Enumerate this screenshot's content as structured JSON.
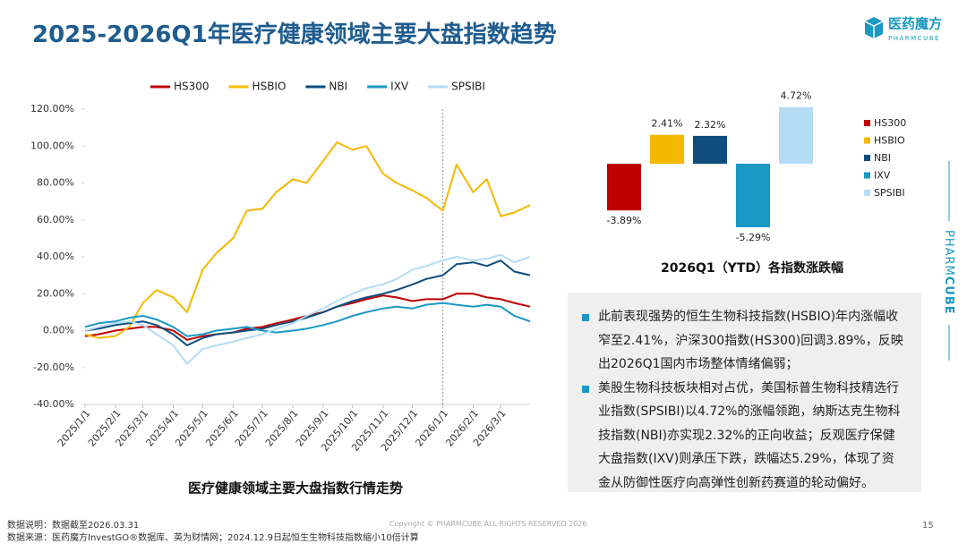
{
  "header": {
    "title": "2025-2026Q1年医疗健康领域主要大盘指数趋势",
    "logo_name": "医药魔方",
    "logo_sub": "PHARMCUBE"
  },
  "side_label": [
    "PHARM",
    "CUBE"
  ],
  "chart_data": [
    {
      "type": "line",
      "title": "医疗健康领域主要大盘指数行情走势",
      "x": [
        "2025/1/1",
        "2025/1/15",
        "2025/2/1",
        "2025/2/15",
        "2025/3/1",
        "2025/3/15",
        "2025/4/1",
        "2025/4/15",
        "2025/5/1",
        "2025/5/15",
        "2025/6/1",
        "2025/6/15",
        "2025/7/1",
        "2025/7/15",
        "2025/8/1",
        "2025/8/15",
        "2025/9/1",
        "2025/9/15",
        "2025/10/1",
        "2025/10/15",
        "2025/11/1",
        "2025/11/15",
        "2025/12/1",
        "2025/12/15",
        "2026/1/1",
        "2026/1/15",
        "2026/2/1",
        "2026/2/15",
        "2026/3/1",
        "2026/3/15",
        "2026/3/31"
      ],
      "xlim": [
        "2025/1/1",
        "2026/3/31"
      ],
      "xticks": [
        "2025/1/1",
        "2025/2/1",
        "2025/3/1",
        "2025/4/1",
        "2025/5/1",
        "2025/6/1",
        "2025/7/1",
        "2025/8/1",
        "2025/9/1",
        "2025/10/1",
        "2025/11/1",
        "2025/12/1",
        "2026/1/1",
        "2026/2/1",
        "2026/3/1"
      ],
      "reference_x": "2026/1/1",
      "ylim": [
        -40,
        120
      ],
      "yticks": [
        {
          "value": -40,
          "label": "-40.00%"
        },
        {
          "value": -20,
          "label": "-20.00%"
        },
        {
          "value": 0,
          "label": "0.00%"
        },
        {
          "value": 20,
          "label": "20.00%"
        },
        {
          "value": 40,
          "label": "40.00%"
        },
        {
          "value": 60,
          "label": "60.00%"
        },
        {
          "value": 80,
          "label": "80.00%"
        },
        {
          "value": 100,
          "label": "100.00%"
        },
        {
          "value": 120,
          "label": "120.00%"
        }
      ],
      "series": [
        {
          "name": "HS300",
          "color": "#c00000",
          "values": [
            -3,
            -2,
            0,
            1,
            2,
            2,
            0,
            -5,
            -3,
            -2,
            -1,
            1,
            2,
            4,
            6,
            8,
            10,
            13,
            15,
            17,
            19,
            18,
            16,
            17,
            17,
            20,
            20,
            18,
            17,
            15,
            13
          ]
        },
        {
          "name": "HSBIO",
          "color": "#f5b800",
          "values": [
            -2,
            -4,
            -3,
            2,
            15,
            22,
            18,
            10,
            33,
            42,
            50,
            65,
            66,
            75,
            82,
            80,
            92,
            102,
            98,
            100,
            85,
            80,
            76,
            72,
            65,
            90,
            75,
            82,
            62,
            64,
            68
          ]
        },
        {
          "name": "NBI",
          "color": "#0e4d7d",
          "values": [
            0,
            1,
            3,
            4,
            5,
            3,
            -2,
            -8,
            -4,
            -2,
            -1,
            0,
            1,
            3,
            5,
            7,
            10,
            13,
            16,
            18,
            20,
            22,
            25,
            28,
            30,
            36,
            37,
            35,
            38,
            32,
            30
          ]
        },
        {
          "name": "IXV",
          "color": "#1b98c4",
          "values": [
            2,
            4,
            5,
            7,
            8,
            6,
            2,
            -3,
            -2,
            0,
            1,
            2,
            0,
            -1,
            0,
            1,
            3,
            5,
            8,
            10,
            12,
            13,
            12,
            14,
            15,
            14,
            13,
            14,
            13,
            8,
            5
          ]
        },
        {
          "name": "SPSIBI",
          "color": "#b4dcf5",
          "values": [
            0,
            2,
            4,
            5,
            3,
            -2,
            -8,
            -18,
            -10,
            -8,
            -6,
            -4,
            -2,
            1,
            4,
            8,
            12,
            16,
            20,
            23,
            25,
            28,
            33,
            35,
            38,
            40,
            38,
            39,
            41,
            37,
            40
          ]
        }
      ]
    },
    {
      "type": "bar",
      "title": "2026Q1（YTD）各指数涨跌幅",
      "categories": [
        "HS300",
        "HSBIO",
        "NBI",
        "IXV",
        "SPSIBI"
      ],
      "values": [
        -3.89,
        2.41,
        2.32,
        -5.29,
        4.72
      ],
      "value_labels": [
        "-3.89%",
        "2.41%",
        "2.32%",
        "-5.29%",
        "4.72%"
      ],
      "colors": [
        "#c00000",
        "#f5b800",
        "#0e4d7d",
        "#1b98c4",
        "#b4dcf5"
      ]
    }
  ],
  "notes": {
    "bullets": [
      "此前表现强势的恒生生物科技指数(HSBIO)年内涨幅收窄至2.41%，沪深300指数(HS300)回调3.89%，反映出2026Q1国内市场整体情绪偏弱；",
      "美股生物科技板块相对占优，美国标普生物科技精选行业指数(SPSIBI)以4.72%的涨幅领跑，纳斯达克生物科技指数(NBI)亦实现2.32%的正向收益；反观医疗保健大盘指数(IXV)则承压下跌，跌幅达5.29%，体现了资金从防御性医疗向高弹性创新药赛道的轮动偏好。"
    ]
  },
  "footer": {
    "note1": "数据说明：数据截至2026.03.31",
    "note2": "数据来源：医药魔方InvestGO®数据库、英为财情网；2024.12.9日起恒生生物科技指数缩小10倍计算",
    "copyright": "Copyright © PHARMCUBE ALL RIGHTS RESERVED 2026",
    "page": "15"
  }
}
